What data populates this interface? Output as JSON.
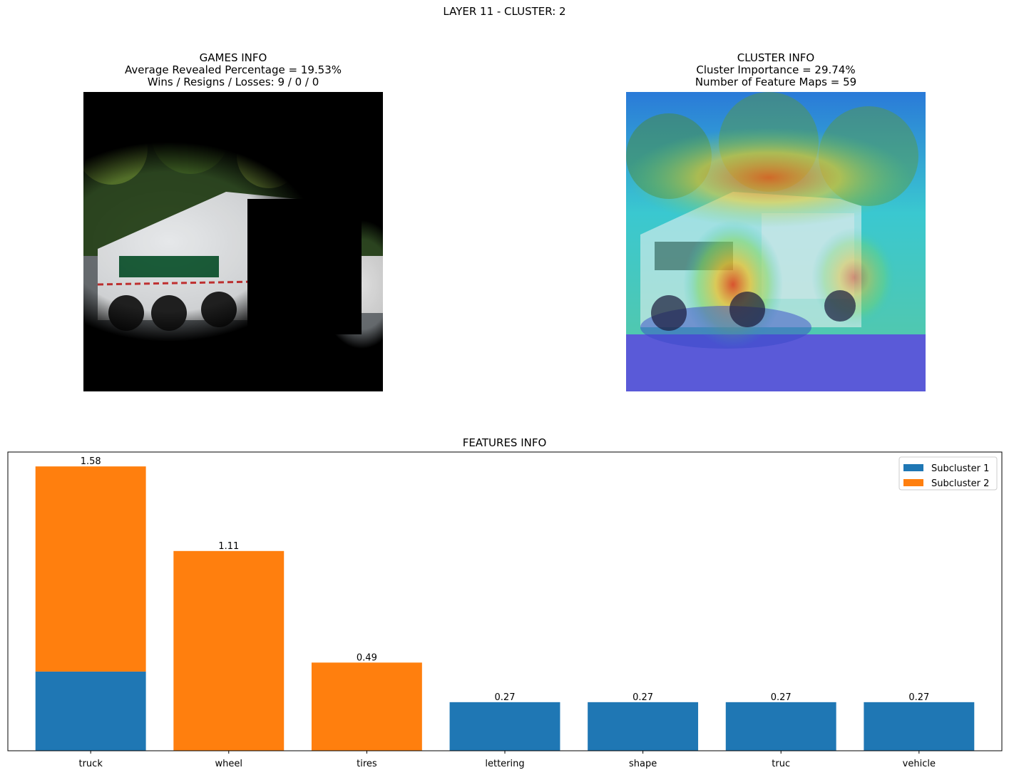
{
  "figure": {
    "suptitle": "LAYER 11 - CLUSTER: 2"
  },
  "games_info": {
    "title": "GAMES INFO",
    "line1": "Average Revealed Percentage = 19.53%",
    "line2": "Wins / Resigns / Losses: 9 / 0 / 0"
  },
  "cluster_info": {
    "title": "CLUSTER INFO",
    "line1": "Cluster Importance = 29.74%",
    "line2": "Number of Feature Maps = 59"
  },
  "colors": {
    "subcluster1": "#1f77b4",
    "subcluster2": "#ff7f0e"
  },
  "chart_data": {
    "type": "bar",
    "stacked": true,
    "title": "FEATURES INFO",
    "categories": [
      "truck",
      "wheel",
      "tires",
      "lettering",
      "shape",
      "truc",
      "vehicle"
    ],
    "series": [
      {
        "name": "Subcluster 1",
        "values": [
          0.44,
          0,
          0,
          0.27,
          0.27,
          0.27,
          0.27
        ]
      },
      {
        "name": "Subcluster 2",
        "values": [
          1.14,
          1.11,
          0.49,
          0,
          0,
          0,
          0
        ]
      }
    ],
    "totals": [
      "1.58",
      "1.11",
      "0.49",
      "0.27",
      "0.27",
      "0.27",
      "0.27"
    ],
    "ylim": [
      0,
      1.66
    ],
    "y_ticks_visible": false,
    "legend_position": "top-right",
    "grid": false
  }
}
